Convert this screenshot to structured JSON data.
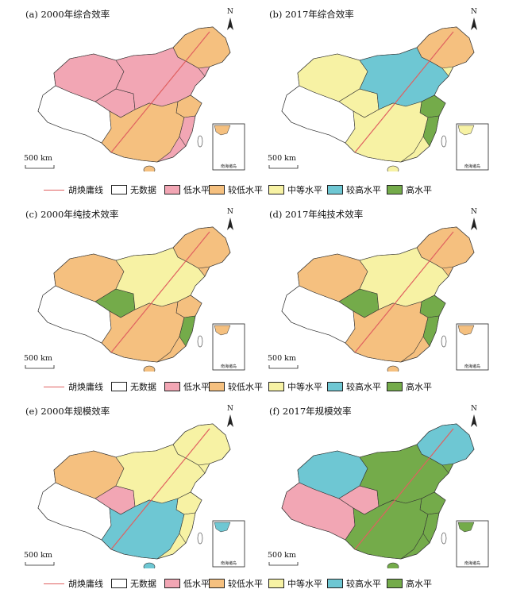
{
  "legend": {
    "items": [
      {
        "label": "胡焕庸线",
        "kind": "line",
        "color": "#e06060"
      },
      {
        "label": "无数据",
        "kind": "box",
        "color": "#ffffff"
      },
      {
        "label": "低水平",
        "kind": "box",
        "color": "#f2a6b4"
      },
      {
        "label": "较低水平",
        "kind": "box",
        "color": "#f5c07f"
      },
      {
        "label": "中等水平",
        "kind": "box",
        "color": "#f7f2a4"
      },
      {
        "label": "较高水平",
        "kind": "box",
        "color": "#6ec7d3"
      },
      {
        "label": "高水平",
        "kind": "box",
        "color": "#74ab4a"
      }
    ]
  },
  "scale_label": "500 km",
  "north_label": "N",
  "inset_label": "南海诸岛",
  "panels": [
    {
      "title": "(a) 2000年综合效率",
      "base": "低水平",
      "patches": {
        "west": "无数据",
        "northwest": "低水平",
        "northeast": "较低水平",
        "center": "低水平",
        "south": "较低水平",
        "qinghai": "低水平",
        "east": "较低水平",
        "fujian": "低水平"
      }
    },
    {
      "title": "(b) 2017年综合效率",
      "base": "中等水平",
      "patches": {
        "west": "无数据",
        "northwest": "中等水平",
        "northeast": "较低水平",
        "center": "较高水平",
        "south": "中等水平",
        "qinghai": "中等水平",
        "east": "高水平",
        "fujian": "高水平"
      }
    },
    {
      "title": "(c) 2000年纯技术效率",
      "base": "较低水平",
      "patches": {
        "west": "无数据",
        "northwest": "较低水平",
        "northeast": "较低水平",
        "center": "中等水平",
        "south": "较低水平",
        "qinghai": "高水平",
        "east": "较低水平",
        "fujian": "高水平"
      }
    },
    {
      "title": "(d) 2017年纯技术效率",
      "base": "较低水平",
      "patches": {
        "west": "无数据",
        "northwest": "较低水平",
        "northeast": "较低水平",
        "center": "中等水平",
        "south": "较低水平",
        "qinghai": "高水平",
        "east": "高水平",
        "fujian": "高水平"
      }
    },
    {
      "title": "(e) 2000年规模效率",
      "base": "中等水平",
      "patches": {
        "west": "无数据",
        "northwest": "较低水平",
        "northeast": "中等水平",
        "center": "中等水平",
        "south": "较高水平",
        "qinghai": "低水平",
        "east": "中等水平",
        "fujian": "中等水平"
      }
    },
    {
      "title": "(f) 2017年规模效率",
      "base": "高水平",
      "patches": {
        "west": "低水平",
        "northwest": "较高水平",
        "northeast": "较高水平",
        "center": "高水平",
        "south": "高水平",
        "qinghai": "低水平",
        "east": "高水平",
        "fujian": "高水平"
      }
    }
  ]
}
